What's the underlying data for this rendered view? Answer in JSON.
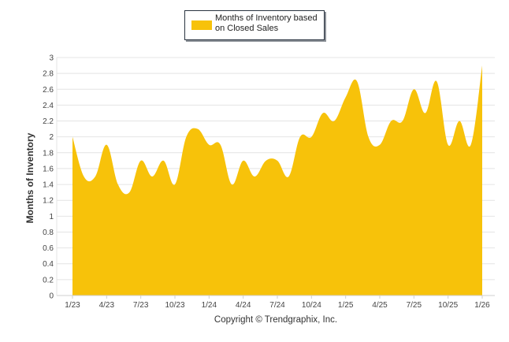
{
  "chart_data": {
    "type": "area",
    "title": "",
    "xlabel": "",
    "ylabel": "Months of Inventory",
    "ylim": [
      0,
      3
    ],
    "yticks": [
      "0",
      "0.2",
      "0.4",
      "0.6",
      "0.8",
      "1",
      "1.2",
      "1.4",
      "1.6",
      "1.8",
      "2",
      "2.2",
      "2.4",
      "2.6",
      "2.8",
      "3"
    ],
    "x_tick_labels": [
      "1/23",
      "4/23",
      "7/23",
      "10/23",
      "1/24",
      "4/24",
      "7/24",
      "10/24",
      "1/25",
      "4/25",
      "7/25",
      "10/25",
      "1/26"
    ],
    "grid": true,
    "legend_position": "top-center",
    "series": [
      {
        "name": "Months of Inventory based on Closed Sales",
        "color": "#F7C20A",
        "x": [
          "1/23",
          "2/23",
          "3/23",
          "4/23",
          "5/23",
          "6/23",
          "7/23",
          "8/23",
          "9/23",
          "10/23",
          "11/23",
          "12/23",
          "1/24",
          "2/24",
          "3/24",
          "4/24",
          "5/24",
          "6/24",
          "7/24",
          "8/24",
          "9/24",
          "10/24",
          "11/24",
          "12/24",
          "1/25",
          "2/25",
          "3/25",
          "4/25",
          "5/25",
          "6/25",
          "7/25",
          "8/25",
          "9/25",
          "10/25",
          "11/25",
          "12/25",
          "1/26"
        ],
        "values": [
          2.0,
          1.5,
          1.5,
          1.9,
          1.4,
          1.3,
          1.7,
          1.5,
          1.7,
          1.4,
          2.0,
          2.1,
          1.9,
          1.9,
          1.4,
          1.7,
          1.5,
          1.7,
          1.7,
          1.5,
          2.0,
          2.0,
          2.3,
          2.2,
          2.5,
          2.7,
          2.0,
          1.9,
          2.2,
          2.2,
          2.6,
          2.3,
          2.7,
          1.9,
          2.2,
          1.9,
          2.9
        ]
      }
    ]
  },
  "legend": {
    "label": "Months of Inventory based on Closed Sales",
    "swatch_color": "#F7C20A"
  },
  "footer": {
    "copyright": "Copyright © Trendgraphix, Inc."
  }
}
